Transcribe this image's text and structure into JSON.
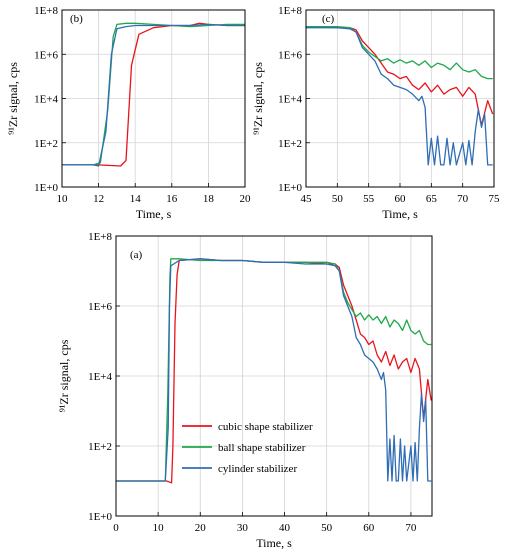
{
  "colors": {
    "cubic": "#e8141c",
    "ball": "#1fa84a",
    "cylinder": "#2f6db5",
    "grid": "#d4d4d4"
  },
  "chart_data": [
    {
      "id": "b",
      "type": "line",
      "panel_label": "(b)",
      "xlabel": "Time, s",
      "ylabel": "⁹¹Zr signal, cps",
      "xlim": [
        10,
        20
      ],
      "ylog_exp_range": [
        0,
        8
      ],
      "x_ticks": [
        "10",
        "12",
        "14",
        "16",
        "18",
        "20"
      ],
      "y_ticks": [
        "1E+0",
        "1E+2",
        "1E+4",
        "1E+6",
        "1E+8"
      ],
      "grid": true,
      "series": [
        {
          "key": "cubic",
          "x": [
            10,
            12,
            13.2,
            13.5,
            13.8,
            14.2,
            15,
            16,
            17,
            17.5,
            18,
            19,
            20
          ],
          "y_exp": [
            1,
            1,
            0.95,
            1.2,
            5.5,
            6.9,
            7.2,
            7.3,
            7.3,
            7.4,
            7.35,
            7.3,
            7.3
          ]
        },
        {
          "key": "ball",
          "x": [
            10,
            11.7,
            12.1,
            12.5,
            12.8,
            13,
            13.5,
            14,
            15,
            16,
            17,
            18,
            19,
            20
          ],
          "y_exp": [
            1,
            1,
            1.1,
            3.5,
            6.8,
            7.35,
            7.4,
            7.4,
            7.35,
            7.3,
            7.25,
            7.3,
            7.35,
            7.35
          ]
        },
        {
          "key": "cylinder",
          "x": [
            10,
            11.7,
            12,
            12.4,
            12.7,
            13,
            13.5,
            14,
            15,
            16,
            17,
            18,
            19,
            20
          ],
          "y_exp": [
            1,
            1,
            0.95,
            2.5,
            6,
            7.15,
            7.25,
            7.3,
            7.3,
            7.3,
            7.3,
            7.35,
            7.3,
            7.3
          ]
        }
      ]
    },
    {
      "id": "c",
      "type": "line",
      "panel_label": "(c)",
      "xlabel": "Time, s",
      "ylabel": "⁹¹Zr signal, cps",
      "xlim": [
        45,
        75
      ],
      "ylog_exp_range": [
        0,
        8
      ],
      "x_ticks": [
        "45",
        "50",
        "55",
        "60",
        "65",
        "70",
        "75"
      ],
      "y_ticks": [
        "1E+0",
        "1E+2",
        "1E+4",
        "1E+6",
        "1E+8"
      ],
      "grid": true,
      "series": [
        {
          "key": "cubic",
          "x": [
            45,
            50,
            52,
            53,
            54,
            55,
            56,
            57,
            58,
            59,
            60,
            61,
            62,
            63,
            64,
            65,
            66,
            67,
            68,
            69,
            70,
            71,
            72,
            73,
            74,
            74.8
          ],
          "y_exp": [
            7.25,
            7.2,
            7.2,
            7.1,
            6.6,
            6.3,
            6,
            5.6,
            5.2,
            5.1,
            4.9,
            5,
            4.6,
            4.4,
            4.7,
            4.3,
            4.6,
            4.2,
            4.4,
            4.5,
            4.1,
            4.5,
            4.2,
            2.8,
            3.9,
            3.3
          ]
        },
        {
          "key": "ball",
          "x": [
            45,
            50,
            52,
            53,
            54,
            55,
            56,
            57,
            58,
            59,
            60,
            61,
            62,
            63,
            64,
            65,
            66,
            67,
            68,
            69,
            70,
            71,
            72,
            73,
            74,
            74.8
          ],
          "y_exp": [
            7.25,
            7.25,
            7.2,
            7,
            6.4,
            6.1,
            5.9,
            5.7,
            5.8,
            5.6,
            5.75,
            5.6,
            5.7,
            5.5,
            5.7,
            5.4,
            5.6,
            5.5,
            5.3,
            5.6,
            5.3,
            5.2,
            5.3,
            5.0,
            4.9,
            4.9
          ]
        },
        {
          "key": "cylinder",
          "x": [
            45,
            50,
            52,
            53,
            54,
            55,
            56,
            57,
            58,
            59,
            60,
            61,
            62,
            63,
            63.5,
            64,
            64.5,
            65,
            65.5,
            66,
            66.5,
            67,
            67.5,
            68,
            68.5,
            69,
            70,
            70.5,
            71,
            71.5,
            72,
            72.5,
            73,
            73.5,
            74,
            74.8
          ],
          "y_exp": [
            7.2,
            7.2,
            7.15,
            7.0,
            6.3,
            6.0,
            5.7,
            5.1,
            4.9,
            4.6,
            4.5,
            4.4,
            4.2,
            3.9,
            4.1,
            3.6,
            1.0,
            2.2,
            1.0,
            2.3,
            1.0,
            1.0,
            2.2,
            1.0,
            2.0,
            1.0,
            2.0,
            1.0,
            2.1,
            1.0,
            2.5,
            3.5,
            2.7,
            3.3,
            1.0,
            1.0
          ]
        }
      ]
    },
    {
      "id": "a",
      "type": "line",
      "panel_label": "(a)",
      "xlabel": "Time, s",
      "ylabel": "⁹¹Zr signal, cps",
      "xlim": [
        0,
        75
      ],
      "ylog_exp_range": [
        0,
        8
      ],
      "x_ticks": [
        "0",
        "10",
        "20",
        "30",
        "40",
        "50",
        "60",
        "70"
      ],
      "y_ticks": [
        "1E+0",
        "1E+2",
        "1E+4",
        "1E+6",
        "1E+8"
      ],
      "grid": true,
      "legend_position": "lower-left",
      "series": [
        {
          "key": "cubic",
          "name": "cubic shape stabilizer",
          "x": [
            0,
            12,
            13.2,
            13.5,
            14,
            14.5,
            15,
            20,
            25,
            30,
            35,
            40,
            45,
            50,
            52,
            53,
            54,
            55,
            56,
            57,
            58,
            59,
            60,
            61,
            62,
            63,
            64,
            65,
            66,
            67,
            68,
            69,
            70,
            71,
            72,
            73,
            74,
            74.8
          ],
          "y_exp": [
            1,
            1,
            0.95,
            2,
            5.5,
            6.9,
            7.3,
            7.35,
            7.3,
            7.3,
            7.25,
            7.25,
            7.25,
            7.2,
            7.2,
            7.1,
            6.6,
            6.3,
            6,
            5.6,
            5.2,
            5.1,
            4.9,
            5,
            4.6,
            4.4,
            4.7,
            4.3,
            4.6,
            4.2,
            4.4,
            4.5,
            4.1,
            4.5,
            4.2,
            2.8,
            3.9,
            3.3
          ]
        },
        {
          "key": "ball",
          "name": "ball shape stabilizer",
          "x": [
            0,
            11.7,
            12.3,
            12.8,
            13,
            15,
            20,
            25,
            30,
            35,
            40,
            45,
            50,
            52,
            53,
            54,
            55,
            56,
            57,
            58,
            59,
            60,
            61,
            62,
            63,
            64,
            65,
            66,
            67,
            68,
            69,
            70,
            71,
            72,
            73,
            74,
            74.8
          ],
          "y_exp": [
            1,
            1,
            3.5,
            6.8,
            7.35,
            7.35,
            7.3,
            7.3,
            7.3,
            7.25,
            7.25,
            7.25,
            7.25,
            7.2,
            7,
            6.4,
            6.1,
            5.9,
            5.7,
            5.8,
            5.6,
            5.75,
            5.6,
            5.7,
            5.5,
            5.7,
            5.4,
            5.6,
            5.5,
            5.3,
            5.6,
            5.3,
            5.2,
            5.3,
            5.0,
            4.9,
            4.9
          ]
        },
        {
          "key": "cylinder",
          "name": "cylinder stabilizer",
          "x": [
            0,
            11.7,
            12.4,
            12.7,
            13,
            15,
            20,
            25,
            30,
            35,
            40,
            45,
            50,
            52,
            53,
            54,
            55,
            56,
            57,
            58,
            59,
            60,
            61,
            62,
            63,
            63.5,
            64,
            64.5,
            65,
            65.5,
            66,
            66.5,
            67,
            67.5,
            68,
            68.5,
            69,
            70,
            70.5,
            71,
            71.5,
            72,
            72.5,
            73,
            73.5,
            74,
            74.8
          ],
          "y_exp": [
            1,
            1,
            2.5,
            6,
            7.15,
            7.3,
            7.35,
            7.3,
            7.3,
            7.25,
            7.25,
            7.2,
            7.2,
            7.15,
            7.0,
            6.3,
            6.0,
            5.7,
            5.1,
            4.9,
            4.6,
            4.5,
            4.4,
            4.2,
            3.9,
            4.1,
            3.6,
            1.0,
            2.2,
            1.0,
            2.3,
            1.0,
            1.0,
            2.2,
            1.0,
            2.0,
            1.0,
            2.0,
            1.0,
            2.1,
            1.0,
            2.5,
            3.5,
            2.7,
            3.3,
            1.0,
            1.0
          ]
        }
      ]
    }
  ]
}
